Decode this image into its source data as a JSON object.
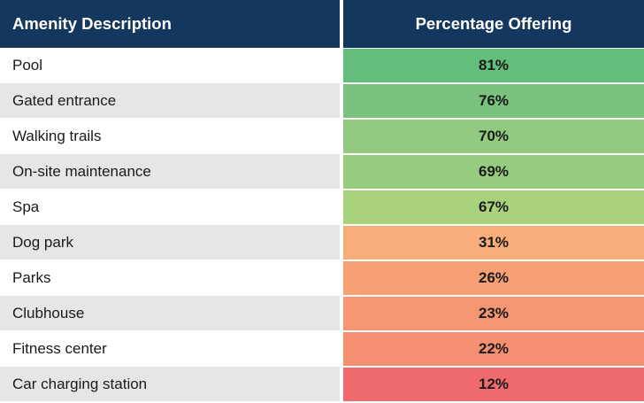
{
  "chart_data": {
    "type": "table",
    "columns": [
      "Amenity Description",
      "Percentage Offering"
    ],
    "rows": [
      {
        "name": "Pool",
        "value": 81,
        "label": "81%",
        "color": "#63be7b"
      },
      {
        "name": "Gated entrance",
        "value": 76,
        "label": "76%",
        "color": "#79c37e"
      },
      {
        "name": "Walking trails",
        "value": 70,
        "label": "70%",
        "color": "#92cb80"
      },
      {
        "name": "On-site maintenance",
        "value": 69,
        "label": "69%",
        "color": "#96cc80"
      },
      {
        "name": "Spa",
        "value": 67,
        "label": "67%",
        "color": "#a9d27f"
      },
      {
        "name": "Dog park",
        "value": 31,
        "label": "31%",
        "color": "#f8ae7a"
      },
      {
        "name": "Parks",
        "value": 26,
        "label": "26%",
        "color": "#f7a076"
      },
      {
        "name": "Clubhouse",
        "value": 23,
        "label": "23%",
        "color": "#f59673"
      },
      {
        "name": "Fitness center",
        "value": 22,
        "label": "22%",
        "color": "#f58f71"
      },
      {
        "name": "Car charging station",
        "value": 12,
        "label": "12%",
        "color": "#ef6a6c"
      }
    ]
  },
  "colors": {
    "header_bg": "#14375e",
    "header_text": "#ffffff",
    "alt_row_bg": "#e6e6e6"
  }
}
